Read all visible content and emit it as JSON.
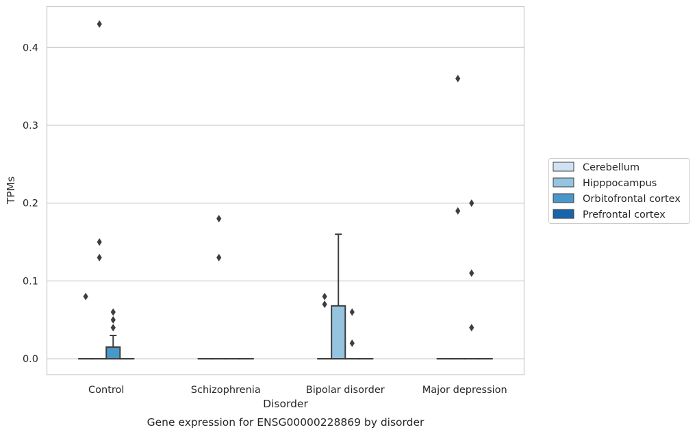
{
  "chart_data": {
    "type": "box",
    "caption": "Gene expression for ENSG00000228869 by disorder",
    "xlabel": "Disorder",
    "ylabel": "TPMs",
    "ylim": [
      -0.021,
      0.453
    ],
    "yticks": [
      0.0,
      0.1,
      0.2,
      0.3,
      0.4
    ],
    "ytick_labels": [
      "0.0",
      "0.1",
      "0.2",
      "0.3",
      "0.4"
    ],
    "categories": [
      "Control",
      "Schizophrenia",
      "Bipolar disorder",
      "Major depression"
    ],
    "grid": "horizontal",
    "legend_position": "right",
    "series": [
      {
        "name": "Cerebellum",
        "color": "#d0e1f2",
        "boxes": [
          {
            "q1": 0,
            "median": 0,
            "q3": 0,
            "whisker_low": 0,
            "whisker_high": 0,
            "outliers": [
              0.08
            ]
          },
          {
            "q1": 0,
            "median": 0,
            "q3": 0,
            "whisker_low": 0,
            "whisker_high": 0,
            "outliers": []
          },
          {
            "q1": 0,
            "median": 0,
            "q3": 0,
            "whisker_low": 0,
            "whisker_high": 0,
            "outliers": [
              0.07,
              0.08
            ]
          },
          {
            "q1": 0,
            "median": 0,
            "q3": 0,
            "whisker_low": 0,
            "whisker_high": 0,
            "outliers": []
          }
        ]
      },
      {
        "name": "Hipppocampus",
        "color": "#94c4df",
        "boxes": [
          {
            "q1": 0,
            "median": 0,
            "q3": 0,
            "whisker_low": 0,
            "whisker_high": 0,
            "outliers": [
              0.13,
              0.15,
              0.43
            ]
          },
          {
            "q1": 0,
            "median": 0,
            "q3": 0,
            "whisker_low": 0,
            "whisker_high": 0,
            "outliers": [
              0.13,
              0.18
            ]
          },
          {
            "q1": 0,
            "median": 0,
            "q3": 0.068,
            "whisker_low": 0,
            "whisker_high": 0.16,
            "outliers": []
          },
          {
            "q1": 0,
            "median": 0,
            "q3": 0,
            "whisker_low": 0,
            "whisker_high": 0,
            "outliers": [
              0.19,
              0.36
            ]
          }
        ]
      },
      {
        "name": "Orbitofrontal cortex",
        "color": "#4a98c9",
        "boxes": [
          {
            "q1": 0,
            "median": 0,
            "q3": 0.015,
            "whisker_low": 0,
            "whisker_high": 0.03,
            "outliers": [
              0.04,
              0.05,
              0.06
            ]
          },
          {
            "q1": 0,
            "median": 0,
            "q3": 0,
            "whisker_low": 0,
            "whisker_high": 0,
            "outliers": []
          },
          {
            "q1": 0,
            "median": 0,
            "q3": 0,
            "whisker_low": 0,
            "whisker_high": 0,
            "outliers": [
              0.02,
              0.06
            ]
          },
          {
            "q1": 0,
            "median": 0,
            "q3": 0,
            "whisker_low": 0,
            "whisker_high": 0,
            "outliers": [
              0.04,
              0.11,
              0.2
            ]
          }
        ]
      },
      {
        "name": "Prefrontal cortex",
        "color": "#1764ab",
        "boxes": [
          {
            "q1": 0,
            "median": 0,
            "q3": 0,
            "whisker_low": 0,
            "whisker_high": 0,
            "outliers": []
          },
          {
            "q1": 0,
            "median": 0,
            "q3": 0,
            "whisker_low": 0,
            "whisker_high": 0,
            "outliers": []
          },
          {
            "q1": 0,
            "median": 0,
            "q3": 0,
            "whisker_low": 0,
            "whisker_high": 0,
            "outliers": []
          },
          {
            "q1": 0,
            "median": 0,
            "q3": 0,
            "whisker_low": 0,
            "whisker_high": 0,
            "outliers": []
          }
        ]
      }
    ]
  }
}
